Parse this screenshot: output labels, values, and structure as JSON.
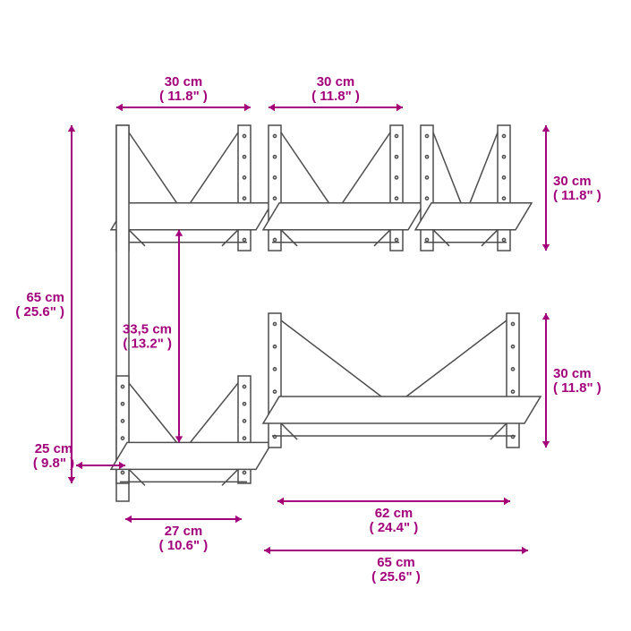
{
  "colors": {
    "accent": "#a3007b",
    "line": "#4d4d4d",
    "bg": "#ffffff"
  },
  "dimensions": {
    "top_left_width": "30 cm( 11.8\" )",
    "top_mid_width": "30 cm( 11.8\" )",
    "right_top_height": "30 cm( 11.8\" )",
    "right_bot_height": "30 cm( 11.8\" )",
    "left_height": "65 cm( 25.6\" )",
    "inner_height": "33,5 cm( 13.2\" )",
    "depth": "25 cm( 9.8\" )",
    "inner_width": "27 cm( 10.6\" )",
    "lower_shelf_width": "62 cm( 24.4\" )",
    "total_width": "65 cm( 25.6\" )"
  }
}
